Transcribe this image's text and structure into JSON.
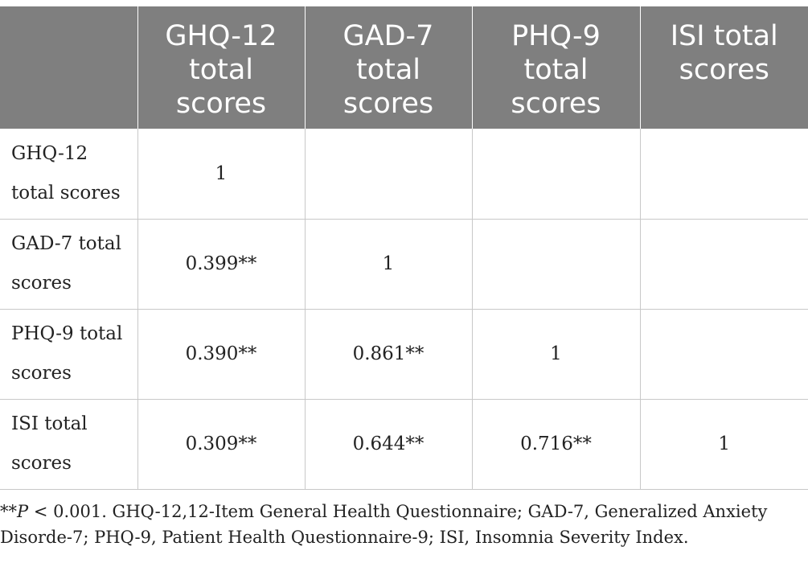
{
  "table": {
    "corner": "",
    "columns": [
      "GHQ-12 total scores",
      "GAD-7 total scores",
      "PHQ-9 total scores",
      "ISI total scores"
    ],
    "rows": [
      {
        "label": "GHQ-12 total scores",
        "cells": [
          "1",
          "",
          "",
          ""
        ]
      },
      {
        "label": "GAD-7 total scores",
        "cells": [
          "0.399**",
          "1",
          "",
          ""
        ]
      },
      {
        "label": "PHQ-9 total scores",
        "cells": [
          "0.390**",
          "0.861**",
          "1",
          ""
        ]
      },
      {
        "label": "ISI total scores",
        "cells": [
          "0.309**",
          "0.644**",
          "0.716**",
          "1"
        ]
      }
    ]
  },
  "footnote": {
    "prefix": "**",
    "p_symbol": "P",
    "text": " < 0.001. GHQ-12,12-Item General Health Questionnaire; GAD-7, Generalized Anxiety Disorde-7; PHQ-9, Patient Health Questionnaire-9; ISI, Insomnia Severity Index."
  },
  "colors": {
    "header_bg": "#7f7f7f",
    "header_text": "#ffffff",
    "border": "#c8c8c8",
    "body_text": "#222222"
  }
}
